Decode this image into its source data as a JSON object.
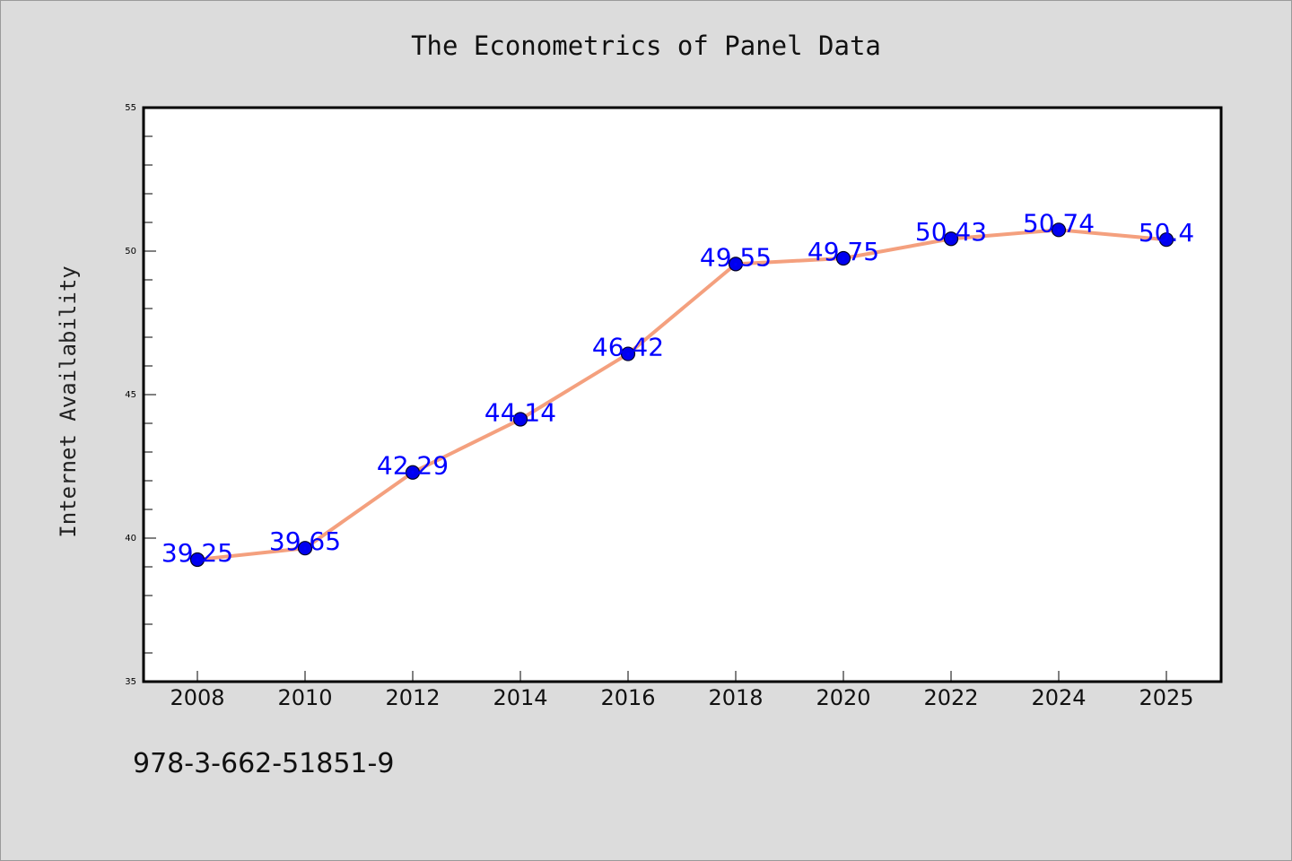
{
  "chart_data": {
    "type": "line",
    "title": "The Econometrics of Panel Data",
    "ylabel": "Internet Availability",
    "xlabel": "",
    "categories": [
      "2008",
      "2010",
      "2012",
      "2014",
      "2016",
      "2018",
      "2020",
      "2022",
      "2024",
      "2025"
    ],
    "values": [
      39.25,
      39.65,
      42.29,
      44.14,
      46.42,
      49.55,
      49.75,
      50.43,
      50.74,
      50.4
    ],
    "data_labels": [
      "39.25",
      "39.65",
      "42.29",
      "44.14",
      "46.42",
      "49.55",
      "49.75",
      "50.43",
      "50.74",
      "50.4"
    ],
    "ylim": [
      35,
      55
    ],
    "yticks": [
      "35",
      "40",
      "45",
      "50",
      "55"
    ],
    "grid": false,
    "line_color": "#f4a07e",
    "marker_color": "#0000ee",
    "label_color": "#0000ff"
  },
  "footer": {
    "isbn": "978-3-662-51851-9"
  }
}
